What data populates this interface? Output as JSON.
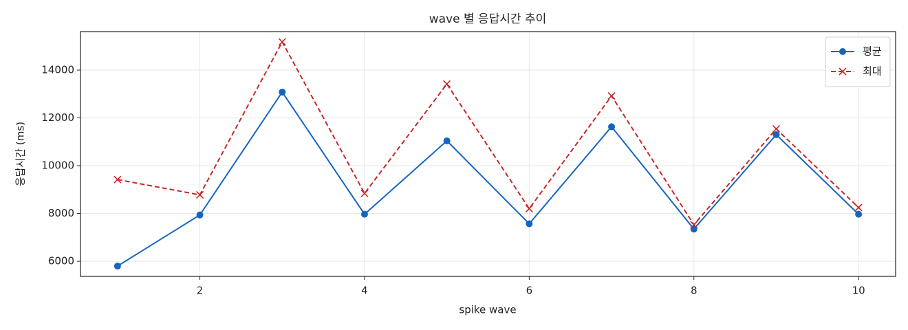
{
  "chart_data": {
    "type": "line",
    "title": "wave 별 응답시간 추이",
    "x_label": "spike wave",
    "y_label": "응답시간 (ms)",
    "x": [
      1,
      2,
      3,
      4,
      5,
      6,
      7,
      8,
      9,
      10
    ],
    "series": [
      {
        "name": "평균",
        "color": "#1565c0",
        "marker": "circle",
        "dashed": false,
        "values": [
          5800,
          7940,
          13080,
          7970,
          11040,
          7570,
          11630,
          7350,
          11300,
          7970
        ]
      },
      {
        "name": "최대",
        "color": "#c62828",
        "marker": "cross",
        "dashed": true,
        "values": [
          9420,
          8780,
          15180,
          8840,
          13420,
          8200,
          12920,
          7530,
          11540,
          8250
        ]
      }
    ],
    "xlim": [
      0.55,
      10.45
    ],
    "xticks": [
      2,
      4,
      6,
      8,
      10
    ],
    "ylim": [
      5370,
      15610
    ],
    "yticks": [
      6000,
      8000,
      10000,
      12000,
      14000
    ],
    "grid": true,
    "legend": "upper right"
  }
}
